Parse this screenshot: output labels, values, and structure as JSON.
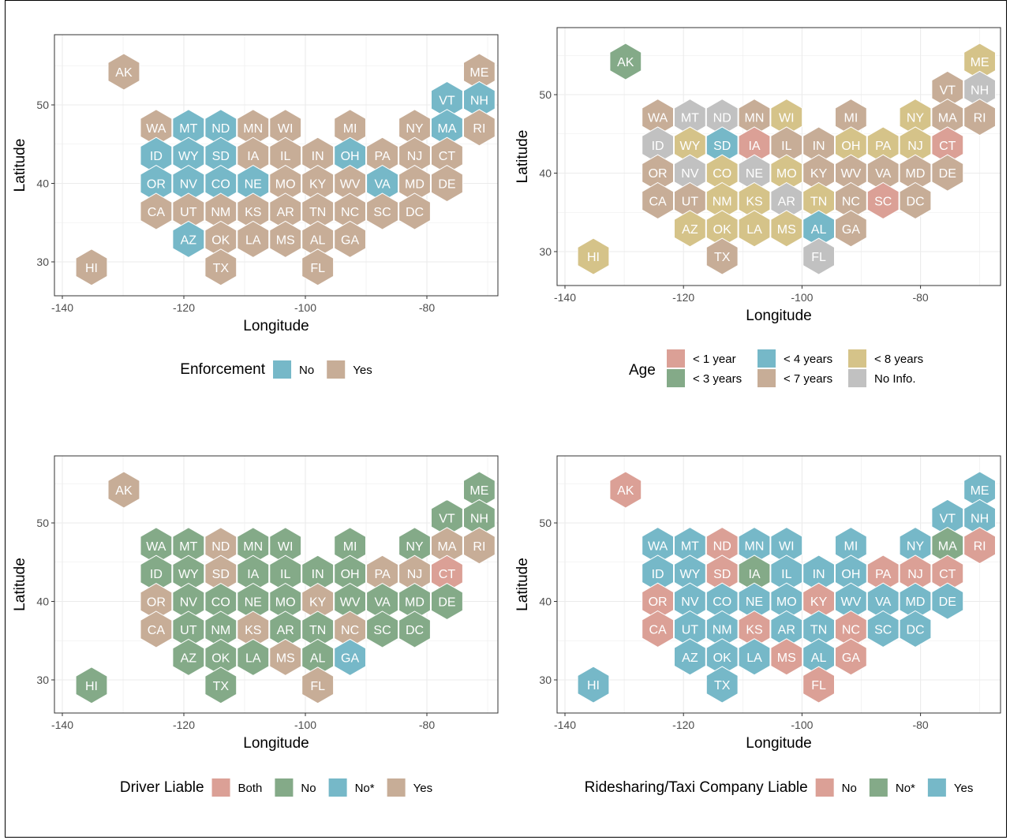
{
  "colors": {
    "salmon": "#DBA096",
    "green": "#84AA88",
    "teal": "#76B8C8",
    "tan": "#C7AD97",
    "khaki": "#D5C389",
    "gray": "#C1C1C1"
  },
  "chart_data": [
    {
      "type": "heatmap",
      "xlabel": "Longitude",
      "ylabel": "Latitude",
      "xticks": [
        -140,
        -120,
        -100,
        -80
      ],
      "yticks": [
        30,
        40,
        50
      ],
      "grid": true,
      "legend_position": "bottom",
      "legend_title": "Enforcement",
      "legend": [
        {
          "label": "No",
          "color": "teal"
        },
        {
          "label": "Yes",
          "color": "tan"
        }
      ],
      "values": {
        "AK": "Yes",
        "ME": "Yes",
        "VT": "No",
        "NH": "No",
        "WA": "Yes",
        "MT": "No",
        "ND": "No",
        "MN": "Yes",
        "WI": "Yes",
        "MI": "Yes",
        "NY": "Yes",
        "MA": "No",
        "RI": "Yes",
        "ID": "No",
        "WY": "No",
        "SD": "No",
        "IA": "Yes",
        "IL": "Yes",
        "IN": "Yes",
        "OH": "No",
        "PA": "Yes",
        "NJ": "Yes",
        "CT": "Yes",
        "OR": "No",
        "NV": "No",
        "CO": "No",
        "NE": "No",
        "MO": "Yes",
        "KY": "Yes",
        "WV": "Yes",
        "VA": "No",
        "MD": "Yes",
        "DE": "Yes",
        "CA": "Yes",
        "UT": "Yes",
        "NM": "Yes",
        "KS": "Yes",
        "AR": "Yes",
        "TN": "Yes",
        "NC": "Yes",
        "SC": "Yes",
        "DC": "Yes",
        "AZ": "No",
        "OK": "Yes",
        "LA": "Yes",
        "MS": "Yes",
        "AL": "Yes",
        "GA": "Yes",
        "HI": "Yes",
        "TX": "Yes",
        "FL": "Yes"
      }
    },
    {
      "type": "heatmap",
      "xlabel": "Longitude",
      "ylabel": "Latitude",
      "xticks": [
        -140,
        -120,
        -100,
        -80
      ],
      "yticks": [
        30,
        40,
        50
      ],
      "grid": true,
      "legend_position": "bottom",
      "legend_title": "Age",
      "legend": [
        {
          "label": "< 1 year",
          "color": "salmon"
        },
        {
          "label": "< 3 years",
          "color": "green"
        },
        {
          "label": "< 4 years",
          "color": "teal"
        },
        {
          "label": "< 7 years",
          "color": "tan"
        },
        {
          "label": "< 8 years",
          "color": "khaki"
        },
        {
          "label": "No Info.",
          "color": "gray"
        }
      ],
      "values": {
        "AK": "< 3 years",
        "ME": "< 8 years",
        "VT": "< 7 years",
        "NH": "No Info.",
        "WA": "< 7 years",
        "MT": "No Info.",
        "ND": "No Info.",
        "MN": "< 7 years",
        "WI": "< 8 years",
        "MI": "< 7 years",
        "NY": "< 8 years",
        "MA": "< 7 years",
        "RI": "< 7 years",
        "ID": "No Info.",
        "WY": "< 8 years",
        "SD": "< 4 years",
        "IA": "< 1 year",
        "IL": "< 7 years",
        "IN": "< 7 years",
        "OH": "< 8 years",
        "PA": "< 8 years",
        "NJ": "< 8 years",
        "CT": "< 1 year",
        "OR": "< 7 years",
        "NV": "No Info.",
        "CO": "< 8 years",
        "NE": "No Info.",
        "MO": "< 8 years",
        "KY": "< 7 years",
        "WV": "< 7 years",
        "VA": "< 7 years",
        "MD": "< 7 years",
        "DE": "< 7 years",
        "CA": "< 7 years",
        "UT": "< 7 years",
        "NM": "< 8 years",
        "KS": "< 8 years",
        "AR": "No Info.",
        "TN": "< 8 years",
        "NC": "< 7 years",
        "SC": "< 1 year",
        "DC": "< 7 years",
        "AZ": "< 8 years",
        "OK": "< 8 years",
        "LA": "< 8 years",
        "MS": "< 8 years",
        "AL": "< 4 years",
        "GA": "< 7 years",
        "HI": "< 8 years",
        "TX": "< 7 years",
        "FL": "No Info."
      }
    },
    {
      "type": "heatmap",
      "xlabel": "Longitude",
      "ylabel": "Latitude",
      "xticks": [
        -140,
        -120,
        -100,
        -80
      ],
      "yticks": [
        30,
        40,
        50
      ],
      "grid": true,
      "legend_position": "bottom",
      "legend_title": "Driver Liable",
      "legend": [
        {
          "label": "Both",
          "color": "salmon"
        },
        {
          "label": "No",
          "color": "green"
        },
        {
          "label": "No*",
          "color": "teal"
        },
        {
          "label": "Yes",
          "color": "tan"
        }
      ],
      "values": {
        "AK": "Yes",
        "ME": "No",
        "VT": "No",
        "NH": "No",
        "WA": "No",
        "MT": "No",
        "ND": "Yes",
        "MN": "No",
        "WI": "No",
        "MI": "No",
        "NY": "No",
        "MA": "Yes",
        "RI": "Yes",
        "ID": "No",
        "WY": "No",
        "SD": "Yes",
        "IA": "No",
        "IL": "No",
        "IN": "No",
        "OH": "No",
        "PA": "Yes",
        "NJ": "Yes",
        "CT": "Both",
        "OR": "Yes",
        "NV": "No",
        "CO": "No",
        "NE": "No",
        "MO": "No",
        "KY": "Yes",
        "WV": "No",
        "VA": "No",
        "MD": "No",
        "DE": "No",
        "CA": "Yes",
        "UT": "No",
        "NM": "No",
        "KS": "Yes",
        "AR": "No",
        "TN": "No",
        "NC": "Yes",
        "SC": "No",
        "DC": "No",
        "AZ": "No",
        "OK": "No",
        "LA": "No",
        "MS": "Yes",
        "AL": "No",
        "GA": "No*",
        "HI": "No",
        "TX": "No",
        "FL": "Yes"
      }
    },
    {
      "type": "heatmap",
      "xlabel": "Longitude",
      "ylabel": "Latitude",
      "xticks": [
        -140,
        -120,
        -100,
        -80
      ],
      "yticks": [
        30,
        40,
        50
      ],
      "grid": true,
      "legend_position": "bottom",
      "legend_title": "Ridesharing/Taxi Company Liable",
      "legend": [
        {
          "label": "No",
          "color": "salmon"
        },
        {
          "label": "No*",
          "color": "green"
        },
        {
          "label": "Yes",
          "color": "teal"
        }
      ],
      "values": {
        "AK": "No",
        "ME": "Yes",
        "VT": "Yes",
        "NH": "Yes",
        "WA": "Yes",
        "MT": "Yes",
        "ND": "No",
        "MN": "Yes",
        "WI": "Yes",
        "MI": "Yes",
        "NY": "Yes",
        "MA": "No*",
        "RI": "No",
        "ID": "Yes",
        "WY": "Yes",
        "SD": "No",
        "IA": "No*",
        "IL": "Yes",
        "IN": "Yes",
        "OH": "Yes",
        "PA": "No",
        "NJ": "No",
        "CT": "No",
        "OR": "No",
        "NV": "Yes",
        "CO": "Yes",
        "NE": "Yes",
        "MO": "Yes",
        "KY": "No",
        "WV": "Yes",
        "VA": "Yes",
        "MD": "Yes",
        "DE": "Yes",
        "CA": "No",
        "UT": "Yes",
        "NM": "Yes",
        "KS": "No",
        "AR": "Yes",
        "TN": "Yes",
        "NC": "No",
        "SC": "Yes",
        "DC": "Yes",
        "AZ": "Yes",
        "OK": "Yes",
        "LA": "Yes",
        "MS": "No",
        "AL": "Yes",
        "GA": "No",
        "HI": "Yes",
        "TX": "Yes",
        "FL": "No"
      }
    }
  ]
}
